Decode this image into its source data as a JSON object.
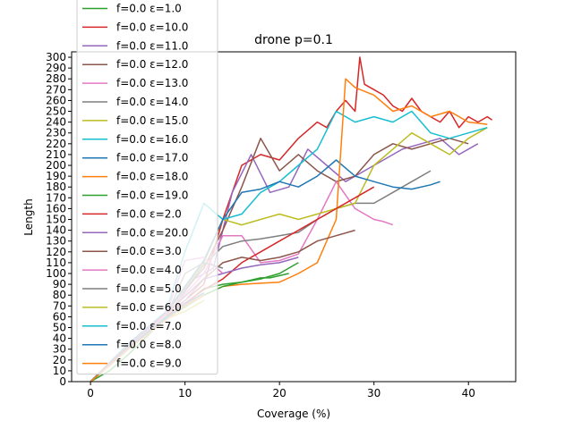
{
  "chart_data": {
    "type": "line",
    "title": "drone p=0.1",
    "xlabel": "Coverage (%)",
    "ylabel": "Length",
    "xlim": [
      -2,
      45
    ],
    "ylim": [
      0,
      305
    ],
    "xticks": [
      "0",
      "10",
      "20",
      "30",
      "40"
    ],
    "xtick_values": [
      0,
      10,
      20,
      30,
      40
    ],
    "ytick_values": [
      0,
      10,
      20,
      30,
      40,
      50,
      60,
      70,
      80,
      90,
      100,
      110,
      120,
      130,
      140,
      150,
      160,
      170,
      180,
      190,
      200,
      210,
      220,
      230,
      240,
      250,
      260,
      270,
      280,
      290,
      300
    ],
    "grid": false,
    "legend_position": "upper-left (overflowing above plot)",
    "series": [
      {
        "name": "f=0.0 ε=1.0",
        "color": "#2ca02c",
        "x": [
          0,
          2,
          4,
          6,
          8,
          10,
          12,
          14,
          16,
          17,
          18,
          19,
          20,
          21
        ],
        "y": [
          0,
          10,
          25,
          42,
          60,
          72,
          86,
          90,
          92,
          94,
          96,
          96,
          98,
          100
        ]
      },
      {
        "name": "f=0.0 ε=10.0",
        "color": "#d62728",
        "x": [
          0,
          4,
          8,
          12,
          14,
          16,
          18,
          20,
          22,
          24,
          25,
          26,
          27,
          28,
          28.5,
          29,
          30,
          31,
          32,
          33,
          34,
          35,
          36,
          37,
          38,
          39,
          40,
          41,
          42,
          42.5
        ],
        "y": [
          0,
          30,
          60,
          90,
          150,
          200,
          210,
          205,
          225,
          240,
          235,
          250,
          260,
          250,
          300,
          275,
          270,
          265,
          255,
          250,
          262,
          250,
          245,
          240,
          250,
          235,
          245,
          240,
          245,
          242
        ]
      },
      {
        "name": "f=0.0 ε=11.0",
        "color": "#9467bd",
        "x": [
          0,
          4,
          8,
          11,
          13,
          15,
          17,
          19,
          21,
          23,
          25,
          27,
          29,
          31,
          33,
          35,
          37,
          39,
          41
        ],
        "y": [
          0,
          30,
          60,
          95,
          105,
          175,
          210,
          175,
          180,
          215,
          200,
          185,
          195,
          205,
          215,
          220,
          225,
          210,
          220
        ]
      },
      {
        "name": "f=0.0 ε=12.0",
        "color": "#8c564b",
        "x": [
          0,
          4,
          8,
          12,
          14,
          16,
          18,
          20,
          22,
          24,
          26,
          28,
          30,
          32,
          34,
          36,
          38,
          40
        ],
        "y": [
          0,
          35,
          65,
          105,
          140,
          180,
          225,
          195,
          210,
          195,
          185,
          190,
          210,
          220,
          215,
          220,
          225,
          220
        ]
      },
      {
        "name": "f=0.0 ε=13.0",
        "color": "#e377c2",
        "x": [
          0,
          4,
          8,
          12,
          14,
          16,
          18,
          20,
          22,
          24,
          26,
          28,
          30,
          31,
          32
        ],
        "y": [
          0,
          32,
          62,
          100,
          135,
          135,
          110,
          112,
          118,
          150,
          185,
          160,
          150,
          148,
          145
        ]
      },
      {
        "name": "f=0.0 ε=14.0",
        "color": "#7f7f7f",
        "x": [
          0,
          4,
          8,
          12,
          14,
          16,
          18,
          20,
          22,
          24,
          26,
          28,
          30,
          32,
          34,
          36
        ],
        "y": [
          0,
          33,
          63,
          108,
          125,
          130,
          132,
          135,
          138,
          150,
          160,
          165,
          165,
          175,
          185,
          195
        ]
      },
      {
        "name": "f=0.0 ε=15.0",
        "color": "#bcbd22",
        "x": [
          0,
          4,
          8,
          12,
          14,
          16,
          18,
          20,
          22,
          24,
          26,
          28,
          30,
          32,
          34,
          36,
          38,
          40,
          42
        ],
        "y": [
          0,
          34,
          64,
          110,
          150,
          145,
          150,
          155,
          150,
          155,
          160,
          165,
          200,
          215,
          230,
          220,
          210,
          225,
          235
        ]
      },
      {
        "name": "f=0.0 ε=16.0",
        "color": "#17becf",
        "x": [
          0,
          4,
          8,
          10,
          12,
          14,
          16,
          18,
          20,
          22,
          24,
          26,
          28,
          30,
          32,
          34,
          36,
          38,
          40,
          42
        ],
        "y": [
          0,
          35,
          65,
          120,
          165,
          150,
          155,
          175,
          185,
          200,
          215,
          250,
          240,
          245,
          240,
          250,
          230,
          225,
          230,
          235
        ]
      },
      {
        "name": "f=0.0 ε=17.0",
        "color": "#1f77b4",
        "x": [
          0,
          4,
          8,
          12,
          14,
          16,
          18,
          20,
          22,
          24,
          26,
          28,
          30,
          32,
          34,
          36,
          37
        ],
        "y": [
          0,
          34,
          64,
          112,
          150,
          175,
          178,
          185,
          180,
          190,
          205,
          190,
          185,
          180,
          178,
          182,
          185
        ]
      },
      {
        "name": "f=0.0 ε=18.0",
        "color": "#ff7f0e",
        "x": [
          0,
          4,
          8,
          12,
          14,
          16,
          18,
          20,
          22,
          24,
          26,
          27,
          28,
          30,
          32,
          34,
          36,
          38,
          40,
          42
        ],
        "y": [
          0,
          32,
          62,
          80,
          88,
          90,
          91,
          92,
          100,
          110,
          150,
          280,
          272,
          265,
          250,
          255,
          245,
          250,
          240,
          238
        ]
      },
      {
        "name": "f=0.0 ε=19.0",
        "color": "#2ca02c",
        "x": [
          0,
          4,
          8,
          12,
          14,
          16,
          18,
          20,
          22
        ],
        "y": [
          0,
          30,
          58,
          80,
          88,
          92,
          95,
          100,
          110
        ]
      },
      {
        "name": "f=0.0 ε=2.0",
        "color": "#d62728",
        "x": [
          0,
          4,
          8,
          12,
          14,
          16,
          18,
          20,
          22,
          24,
          26,
          28,
          30
        ],
        "y": [
          0,
          32,
          60,
          85,
          95,
          110,
          120,
          130,
          140,
          150,
          160,
          170,
          180
        ]
      },
      {
        "name": "f=0.0 ε=20.0",
        "color": "#9467bd",
        "x": [
          0,
          4,
          8,
          10,
          12,
          14,
          16,
          18,
          20,
          22
        ],
        "y": [
          0,
          34,
          64,
          75,
          95,
          100,
          105,
          108,
          110,
          115
        ]
      },
      {
        "name": "f=0.0 ε=3.0",
        "color": "#8c564b",
        "x": [
          0,
          4,
          8,
          12,
          14,
          16,
          18,
          20,
          22,
          24,
          26,
          28
        ],
        "y": [
          0,
          33,
          63,
          95,
          110,
          115,
          112,
          115,
          120,
          130,
          135,
          140
        ]
      },
      {
        "name": "f=0.0 ε=4.0",
        "color": "#e377c2",
        "x": [
          0,
          4,
          8,
          10,
          12,
          14
        ],
        "y": [
          0,
          32,
          62,
          112,
          115,
          100
        ]
      },
      {
        "name": "f=0.0 ε=5.0",
        "color": "#7f7f7f",
        "x": [
          0,
          4,
          8,
          10,
          12,
          14
        ],
        "y": [
          0,
          32,
          60,
          100,
          110,
          105
        ]
      },
      {
        "name": "f=0.0 ε=6.0",
        "color": "#bcbd22",
        "x": [
          0,
          4,
          8,
          10,
          12
        ],
        "y": [
          0,
          30,
          58,
          65,
          75
        ]
      },
      {
        "name": "f=0.0 ε=7.0",
        "color": "#17becf",
        "x": [
          0,
          4,
          8,
          10,
          12
        ],
        "y": [
          0,
          30,
          58,
          70,
          80
        ]
      },
      {
        "name": "f=0.0 ε=8.0",
        "color": "#1f77b4",
        "x": [
          0,
          4,
          8,
          10,
          12
        ],
        "y": [
          0,
          31,
          59,
          72,
          82
        ]
      },
      {
        "name": "f=0.0 ε=9.0",
        "color": "#ff7f0e",
        "x": [
          0,
          4,
          8,
          10,
          12
        ],
        "y": [
          0,
          30,
          57,
          70,
          80
        ]
      }
    ]
  }
}
